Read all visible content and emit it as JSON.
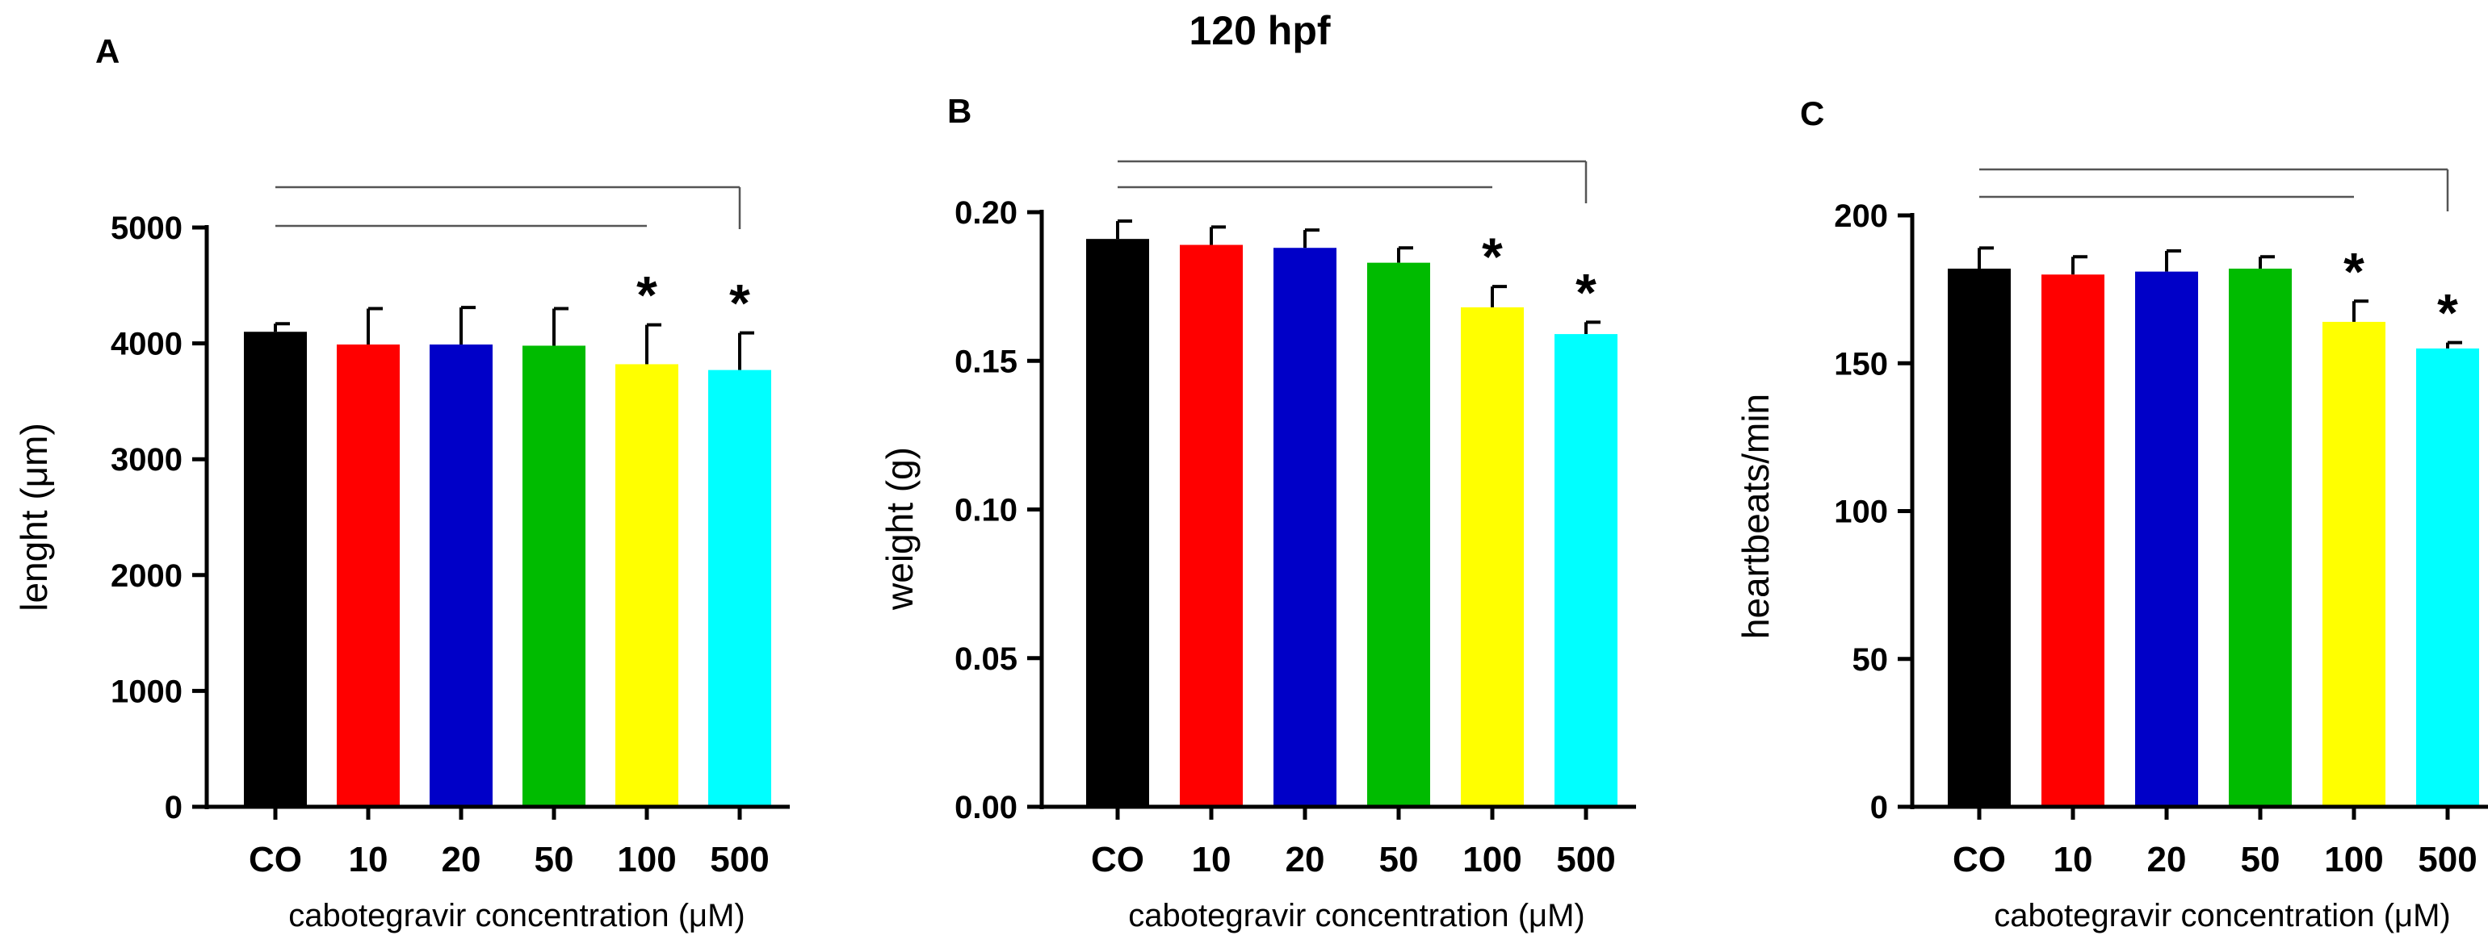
{
  "figure_title": "120 hpf",
  "colors": {
    "bars": [
      "#000000",
      "#ff0000",
      "#0000c8",
      "#00bb00",
      "#ffff00",
      "#00ffff"
    ],
    "axis": "#000000",
    "bracket": "#555555"
  },
  "chart_data": [
    {
      "panel": "A",
      "type": "bar",
      "title": "",
      "categories": [
        "CO",
        "10",
        "20",
        "50",
        "100",
        "500"
      ],
      "values": [
        4100,
        3990,
        3990,
        3980,
        3820,
        3770
      ],
      "errors": [
        70,
        310,
        320,
        320,
        340,
        320
      ],
      "ylabel": "lenght (μm)",
      "xlabel": "cabotegravir concentration (μM)",
      "ylim": [
        0,
        5000
      ],
      "yticks": [
        0,
        1000,
        2000,
        3000,
        4000,
        5000
      ],
      "ytick_labels": [
        "0",
        "1000",
        "2000",
        "3000",
        "4000",
        "5000"
      ],
      "significance": [
        "",
        "",
        "",
        "",
        "*",
        "*"
      ],
      "brackets": [
        {
          "from": "CO",
          "to": "100"
        },
        {
          "from": "CO",
          "to": "500"
        }
      ]
    },
    {
      "panel": "B",
      "type": "bar",
      "title": "",
      "categories": [
        "CO",
        "10",
        "20",
        "50",
        "100",
        "500"
      ],
      "values": [
        0.191,
        0.189,
        0.188,
        0.183,
        0.168,
        0.159
      ],
      "errors": [
        0.006,
        0.006,
        0.006,
        0.005,
        0.007,
        0.004
      ],
      "ylabel": "weight (g)",
      "xlabel": "cabotegravir concentration (μM)",
      "ylim": [
        0,
        0.2
      ],
      "yticks": [
        0,
        0.05,
        0.1,
        0.15,
        0.2
      ],
      "ytick_labels": [
        "0.00",
        "0.05",
        "0.10",
        "0.15",
        "0.20"
      ],
      "significance": [
        "",
        "",
        "",
        "",
        "*",
        "*"
      ],
      "brackets": [
        {
          "from": "CO",
          "to": "100"
        },
        {
          "from": "CO",
          "to": "500"
        }
      ]
    },
    {
      "panel": "C",
      "type": "bar",
      "title": "",
      "categories": [
        "CO",
        "10",
        "20",
        "50",
        "100",
        "500"
      ],
      "values": [
        182,
        180,
        181,
        182,
        164,
        155
      ],
      "errors": [
        7,
        6,
        7,
        4,
        7,
        2
      ],
      "ylabel": "heartbeats/min",
      "xlabel": "cabotegravir concentration (μM)",
      "ylim": [
        0,
        200
      ],
      "yticks": [
        0,
        50,
        100,
        150,
        200
      ],
      "ytick_labels": [
        "0",
        "50",
        "100",
        "150",
        "200"
      ],
      "significance": [
        "",
        "",
        "",
        "",
        "*",
        "*"
      ],
      "brackets": [
        {
          "from": "CO",
          "to": "100"
        },
        {
          "from": "CO",
          "to": "500"
        }
      ]
    }
  ]
}
